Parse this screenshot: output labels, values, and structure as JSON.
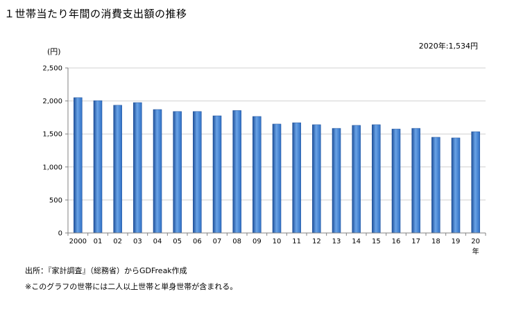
{
  "title": "１世帯当たり年間の消費支出額の推移",
  "annotation": "2020年:1,534円",
  "unit_label": "(円)",
  "source": "出所：『家計調査』（総務省）からGDFreak作成",
  "note": "※このグラフの世帯には二人以上世帯と単身世帯が含まれる。",
  "colors": {
    "bar": "#2f6fc4",
    "bar_light": "#6aa3e6",
    "bar_dark": "#1d4f99",
    "grid": "#d0d0d0",
    "axis": "#808080"
  },
  "chart_data": {
    "type": "bar",
    "categories": [
      "2000",
      "01",
      "02",
      "03",
      "04",
      "05",
      "06",
      "07",
      "08",
      "09",
      "10",
      "11",
      "12",
      "13",
      "14",
      "15",
      "16",
      "17",
      "18",
      "19",
      "20"
    ],
    "values": [
      2050,
      2005,
      1935,
      1975,
      1870,
      1840,
      1840,
      1775,
      1855,
      1765,
      1650,
      1670,
      1640,
      1585,
      1630,
      1640,
      1575,
      1585,
      1450,
      1440,
      1534
    ],
    "xlabel": "年",
    "ylabel": "(円)",
    "ylim": [
      0,
      2500
    ],
    "yticks": [
      0,
      500,
      1000,
      1500,
      2000,
      2500
    ],
    "ytick_labels": [
      "0",
      "500",
      "1,000",
      "1,500",
      "2,000",
      "2,500"
    ],
    "grid": true,
    "legend": "none"
  }
}
